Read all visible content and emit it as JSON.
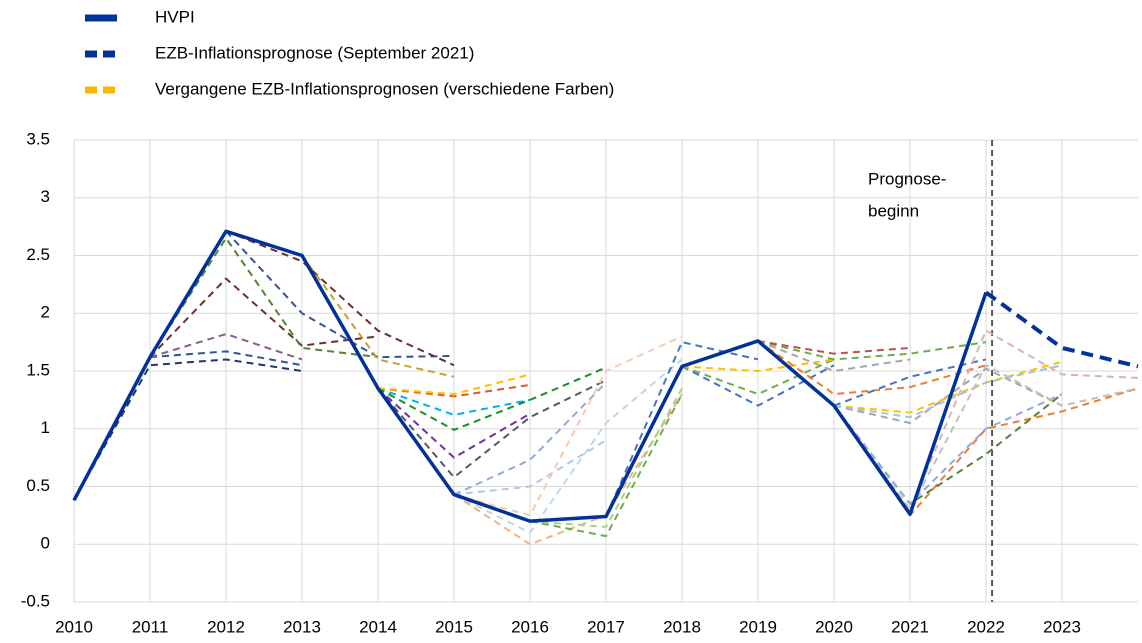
{
  "chart_data": {
    "type": "line",
    "ylim": [
      -0.5,
      3.5
    ],
    "yticks": [
      -0.5,
      0,
      0.5,
      1,
      1.5,
      2,
      2.5,
      3,
      3.5
    ],
    "xlim": [
      2010,
      2024
    ],
    "xticks": [
      2010,
      2011,
      2012,
      2013,
      2014,
      2015,
      2016,
      2017,
      2018,
      2019,
      2020,
      2021,
      2022,
      2023
    ],
    "grid": true,
    "legend": "top-left",
    "annotation": {
      "lines": [
        "Prognose-",
        "beginn"
      ],
      "x": 2022.08
    },
    "series": [
      {
        "name": "HVPI",
        "color": "#003299",
        "style": "solid",
        "x": [
          2010,
          2011,
          2012,
          2013,
          2014,
          2015,
          2016,
          2017,
          2018,
          2019,
          2020,
          2021,
          2022
        ],
        "values": [
          0.38,
          1.62,
          2.71,
          2.5,
          1.35,
          0.43,
          0.2,
          0.24,
          1.54,
          1.76,
          1.2,
          0.26,
          2.18
        ]
      },
      {
        "name": "EZB-Inflationsprognose (September 2021)",
        "color": "#003299",
        "style": "dashed",
        "x": [
          2022,
          2023,
          2024
        ],
        "values": [
          2.18,
          1.7,
          1.54
        ]
      },
      {
        "name": "Vergangene EZB-Inflationsprognosen (verschiedene Farben)",
        "color": "#ffb400",
        "style": "dashed",
        "lines": [
          {
            "color": "#1f3864",
            "x": [
              2010,
              2011,
              2012,
              2013
            ],
            "values": [
              0.38,
              1.55,
              1.6,
              1.5
            ]
          },
          {
            "color": "#2f5597",
            "x": [
              2011,
              2012,
              2013
            ],
            "values": [
              1.62,
              1.67,
              1.55
            ]
          },
          {
            "color": "#8e5a8e",
            "x": [
              2011,
              2012,
              2013
            ],
            "values": [
              1.62,
              1.82,
              1.6
            ]
          },
          {
            "color": "#6b2f2f",
            "x": [
              2011,
              2012,
              2013,
              2014
            ],
            "values": [
              1.62,
              2.3,
              1.72,
              1.8
            ]
          },
          {
            "color": "#548235",
            "x": [
              2011,
              2012,
              2013,
              2014
            ],
            "values": [
              1.62,
              2.65,
              1.7,
              1.62
            ]
          },
          {
            "color": "#2f5597",
            "x": [
              2012,
              2013,
              2014,
              2015
            ],
            "values": [
              2.71,
              2.0,
              1.62,
              1.63
            ]
          },
          {
            "color": "#6b2f2f",
            "x": [
              2012,
              2013,
              2014,
              2015
            ],
            "values": [
              2.71,
              2.45,
              1.85,
              1.55
            ]
          },
          {
            "color": "#c9a227",
            "x": [
              2013,
              2014,
              2015
            ],
            "values": [
              2.5,
              1.6,
              1.45
            ]
          },
          {
            "color": "#e0562a",
            "x": [
              2014,
              2015,
              2016
            ],
            "values": [
              1.35,
              1.28,
              1.38
            ]
          },
          {
            "color": "#00b0f0",
            "x": [
              2014,
              2015,
              2016
            ],
            "values": [
              1.35,
              1.12,
              1.25
            ]
          },
          {
            "color": "#1a8f2a",
            "x": [
              2014,
              2015,
              2016,
              2017
            ],
            "values": [
              1.35,
              0.99,
              1.25,
              1.53
            ]
          },
          {
            "color": "#7030a0",
            "x": [
              2014,
              2015,
              2016
            ],
            "values": [
              1.35,
              0.75,
              1.13
            ]
          },
          {
            "color": "#595959",
            "x": [
              2014,
              2015,
              2016,
              2017
            ],
            "values": [
              1.35,
              0.58,
              1.1,
              1.42
            ]
          },
          {
            "color": "#ffc000",
            "x": [
              2014,
              2015,
              2016
            ],
            "values": [
              1.35,
              1.3,
              1.47
            ]
          },
          {
            "color": "#8faadc",
            "x": [
              2015,
              2016,
              2017
            ],
            "values": [
              0.43,
              0.73,
              1.4
            ]
          },
          {
            "color": "#b4c7e7",
            "x": [
              2015,
              2016,
              2017
            ],
            "values": [
              0.43,
              0.5,
              0.9
            ]
          },
          {
            "color": "#f8cbad",
            "x": [
              2015,
              2016,
              2017,
              2018
            ],
            "values": [
              0.43,
              0.25,
              1.5,
              1.8
            ]
          },
          {
            "color": "#bdd7ee",
            "x": [
              2015,
              2016,
              2017,
              2018
            ],
            "values": [
              0.43,
              0.1,
              1.05,
              1.6
            ]
          },
          {
            "color": "#f4b183",
            "x": [
              2015,
              2016,
              2017,
              2018
            ],
            "values": [
              0.43,
              0.0,
              0.25,
              1.3
            ]
          },
          {
            "color": "#70ad47",
            "x": [
              2016,
              2017,
              2018
            ],
            "values": [
              0.2,
              0.07,
              1.3
            ]
          },
          {
            "color": "#a9d18e",
            "x": [
              2016,
              2017,
              2018
            ],
            "values": [
              0.2,
              0.15,
              1.35
            ]
          },
          {
            "color": "#4472c4",
            "x": [
              2017,
              2018,
              2019
            ],
            "values": [
              0.24,
              1.75,
              1.6
            ]
          },
          {
            "color": "#4472c4",
            "x": [
              2018,
              2019,
              2020
            ],
            "values": [
              1.54,
              1.2,
              1.55
            ]
          },
          {
            "color": "#70ad47",
            "x": [
              2018,
              2019,
              2020
            ],
            "values": [
              1.54,
              1.3,
              1.6
            ]
          },
          {
            "color": "#ffc000",
            "x": [
              2018,
              2019,
              2020
            ],
            "values": [
              1.54,
              1.5,
              1.6
            ]
          },
          {
            "color": "#70ad47",
            "x": [
              2019,
              2020,
              2021,
              2022
            ],
            "values": [
              1.76,
              1.6,
              1.65,
              1.75
            ]
          },
          {
            "color": "#c0504d",
            "x": [
              2019,
              2020,
              2021
            ],
            "values": [
              1.76,
              1.65,
              1.7
            ]
          },
          {
            "color": "#a5a5a5",
            "x": [
              2019,
              2020,
              2021
            ],
            "values": [
              1.76,
              1.5,
              1.6
            ]
          },
          {
            "color": "#ed7d31",
            "x": [
              2019,
              2020,
              2021,
              2022
            ],
            "values": [
              1.76,
              1.3,
              1.36,
              1.55
            ]
          },
          {
            "color": "#a5a5a5",
            "x": [
              2020,
              2021,
              2022,
              2023
            ],
            "values": [
              1.2,
              1.05,
              1.52,
              1.2
            ]
          },
          {
            "color": "#ffc000",
            "x": [
              2020,
              2021,
              2022,
              2023
            ],
            "values": [
              1.2,
              1.14,
              1.4,
              1.58
            ]
          },
          {
            "color": "#4472c4",
            "x": [
              2020,
              2021,
              2022
            ],
            "values": [
              1.2,
              1.45,
              1.6
            ]
          },
          {
            "color": "#9dc3e6",
            "x": [
              2020,
              2021,
              2022,
              2023
            ],
            "values": [
              1.2,
              1.1,
              1.4,
              1.55
            ]
          },
          {
            "color": "#ed7d31",
            "x": [
              2020,
              2021,
              2022,
              2023,
              2024
            ],
            "values": [
              1.2,
              0.25,
              1.0,
              1.15,
              1.35
            ]
          },
          {
            "color": "#548235",
            "x": [
              2020,
              2021,
              2022,
              2023
            ],
            "values": [
              1.2,
              0.35,
              0.78,
              1.3
            ]
          },
          {
            "color": "#8faadc",
            "x": [
              2020,
              2021,
              2022,
              2023
            ],
            "values": [
              1.2,
              0.35,
              1.0,
              1.3
            ]
          },
          {
            "color": "#d9b3b3",
            "x": [
              2020,
              2021,
              2022,
              2023,
              2024
            ],
            "values": [
              1.2,
              0.3,
              1.85,
              1.47,
              1.44
            ]
          },
          {
            "color": "#bfbfbf",
            "x": [
              2020,
              2021,
              2022,
              2023,
              2024
            ],
            "values": [
              1.2,
              0.3,
              1.55,
              1.2,
              1.35
            ]
          }
        ]
      }
    ]
  }
}
